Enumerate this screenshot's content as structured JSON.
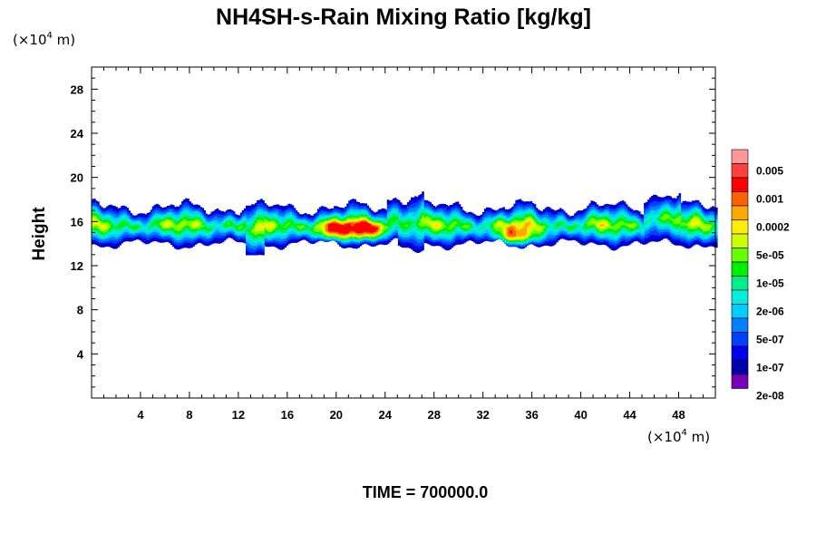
{
  "chart_data": {
    "type": "heatmap",
    "title": "NH4SH-s-Rain Mixing Ratio [kg/kg]",
    "x_unit": {
      "prefix": "(×10",
      "exp": "4",
      "suffix": " m)"
    },
    "y_unit": {
      "prefix": "(×10",
      "exp": "4",
      "suffix": " m)"
    },
    "ylabel": "Height",
    "xlim": [
      0,
      51
    ],
    "ylim": [
      0,
      30
    ],
    "x_ticks": [
      4,
      8,
      12,
      16,
      20,
      24,
      28,
      32,
      36,
      40,
      44,
      48
    ],
    "y_ticks": [
      4,
      8,
      12,
      16,
      20,
      24,
      28
    ],
    "time_label": "TIME = 700000.0",
    "colorbar": {
      "colors": [
        "#ff9999",
        "#ff4040",
        "#ff0000",
        "#ff6000",
        "#ffaa00",
        "#ffee00",
        "#ccff00",
        "#66ff00",
        "#00ee00",
        "#00ee88",
        "#00eedd",
        "#00ccff",
        "#0080ff",
        "#0040ff",
        "#0000ee",
        "#0000aa",
        "#7700bb"
      ],
      "tick_labels": [
        "0.005",
        "0.001",
        "0.0002",
        "5e-05",
        "1e-05",
        "2e-06",
        "5e-07",
        "1e-07",
        "2e-08"
      ]
    },
    "layer": {
      "band_x": [
        0,
        51
      ],
      "band_height_range": [
        13,
        19
      ],
      "core_height_range": [
        14,
        17
      ],
      "max_regions": [
        {
          "x": 19.7,
          "height": 15.1
        },
        {
          "x": 22.5,
          "height": 15.2
        },
        {
          "x": 34.5,
          "height": 14.7
        }
      ]
    }
  }
}
